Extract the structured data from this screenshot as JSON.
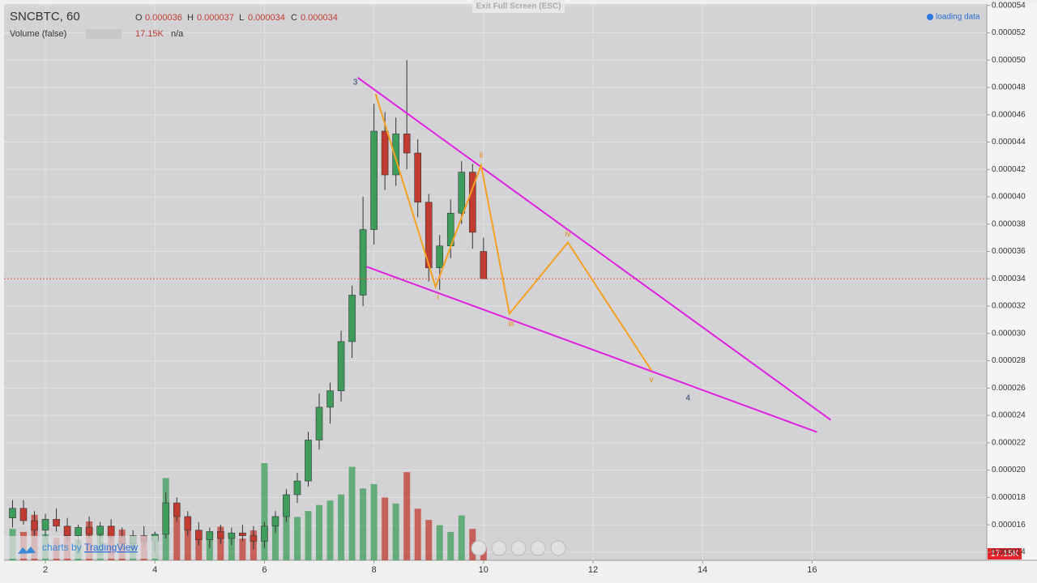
{
  "chart_data": {
    "type": "candlestick",
    "title": "SNCBTC, 60",
    "header": {
      "open_label": "O",
      "open": "0.000036",
      "high_label": "H",
      "high": "0.000037",
      "low_label": "L",
      "low": "0.000034",
      "close_label": "C",
      "close": "0.000034"
    },
    "volume_title": "Volume (false)",
    "volume_value": "17.15K",
    "volume_extra": "n/a",
    "exit_text": "Exit Full Screen (ESC)",
    "status_text": "loading data",
    "branding_prefix": "charts by",
    "branding_name": "TradingView",
    "x": [
      1.4,
      1.6,
      1.8,
      2.0,
      2.2,
      2.4,
      2.6,
      2.8,
      3.0,
      3.2,
      3.4,
      3.6,
      3.8,
      4.0,
      4.2,
      4.4,
      4.6,
      4.8,
      5.0,
      5.2,
      5.4,
      5.6,
      5.8,
      6.0,
      6.2,
      6.4,
      6.6,
      6.8,
      7.0,
      7.2,
      7.4,
      7.6,
      7.8,
      8.0,
      8.2,
      8.4,
      8.6,
      8.8,
      9.0,
      9.2,
      9.4,
      9.6,
      9.8,
      10.0
    ],
    "open": [
      1.65e-05,
      1.72e-05,
      1.63e-05,
      1.56e-05,
      1.64e-05,
      1.59e-05,
      1.52e-05,
      1.58e-05,
      1.53e-05,
      1.59e-05,
      1.51e-05,
      1.46e-05,
      1.52e-05,
      1.48e-05,
      1.53e-05,
      1.76e-05,
      1.66e-05,
      1.56e-05,
      1.49e-05,
      1.55e-05,
      1.5e-05,
      1.54e-05,
      1.52e-05,
      1.48e-05,
      1.59e-05,
      1.66e-05,
      1.82e-05,
      1.92e-05,
      2.22e-05,
      2.46e-05,
      2.58e-05,
      2.94e-05,
      3.28e-05,
      3.76e-05,
      4.48e-05,
      4.16e-05,
      4.46e-05,
      4.32e-05,
      3.96e-05,
      3.48e-05,
      3.64e-05,
      3.88e-05,
      4.18e-05,
      3.6e-05
    ],
    "high": [
      1.78e-05,
      1.78e-05,
      1.7e-05,
      1.68e-05,
      1.72e-05,
      1.65e-05,
      1.6e-05,
      1.66e-05,
      1.62e-05,
      1.64e-05,
      1.58e-05,
      1.56e-05,
      1.59e-05,
      1.55e-05,
      1.84e-05,
      1.8e-05,
      1.7e-05,
      1.62e-05,
      1.58e-05,
      1.6e-05,
      1.58e-05,
      1.6e-05,
      1.59e-05,
      1.62e-05,
      1.7e-05,
      1.86e-05,
      1.98e-05,
      2.28e-05,
      2.56e-05,
      2.64e-05,
      3.02e-05,
      3.35e-05,
      4e-05,
      4.68e-05,
      4.62e-05,
      4.58e-05,
      5e-05,
      4.42e-05,
      4.02e-05,
      3.72e-05,
      3.98e-05,
      4.26e-05,
      4.24e-05,
      3.7e-05
    ],
    "low": [
      1.58e-05,
      1.6e-05,
      1.52e-05,
      1.5e-05,
      1.55e-05,
      1.48e-05,
      1.46e-05,
      1.5e-05,
      1.45e-05,
      1.48e-05,
      1.42e-05,
      1.4e-05,
      1.44e-05,
      1.4e-05,
      1.5e-05,
      1.62e-05,
      1.52e-05,
      1.45e-05,
      1.43e-05,
      1.46e-05,
      1.45e-05,
      1.48e-05,
      1.42e-05,
      1.43e-05,
      1.54e-05,
      1.62e-05,
      1.76e-05,
      1.88e-05,
      2.15e-05,
      2.34e-05,
      2.5e-05,
      2.82e-05,
      3.2e-05,
      3.65e-05,
      4.05e-05,
      4.08e-05,
      4.2e-05,
      3.85e-05,
      3.38e-05,
      3.32e-05,
      3.55e-05,
      3.8e-05,
      3.62e-05,
      3.4e-05
    ],
    "close": [
      1.72e-05,
      1.63e-05,
      1.56e-05,
      1.64e-05,
      1.59e-05,
      1.52e-05,
      1.58e-05,
      1.53e-05,
      1.59e-05,
      1.51e-05,
      1.46e-05,
      1.52e-05,
      1.48e-05,
      1.53e-05,
      1.76e-05,
      1.66e-05,
      1.56e-05,
      1.49e-05,
      1.55e-05,
      1.5e-05,
      1.54e-05,
      1.52e-05,
      1.48e-05,
      1.59e-05,
      1.66e-05,
      1.82e-05,
      1.92e-05,
      2.22e-05,
      2.46e-05,
      2.58e-05,
      2.94e-05,
      3.28e-05,
      3.76e-05,
      4.48e-05,
      4.16e-05,
      4.46e-05,
      4.32e-05,
      3.96e-05,
      3.48e-05,
      3.64e-05,
      3.88e-05,
      4.18e-05,
      3.74e-05,
      3.4e-05
    ],
    "volume": [
      42000,
      38000,
      61000,
      35000,
      30000,
      44000,
      28000,
      52000,
      36000,
      33000,
      41000,
      27000,
      30000,
      25000,
      110000,
      64000,
      48000,
      39000,
      31000,
      45000,
      36000,
      29000,
      40000,
      130000,
      52000,
      70000,
      58000,
      66000,
      74000,
      80000,
      88000,
      125000,
      96000,
      102000,
      84000,
      76000,
      118000,
      69000,
      54000,
      47000,
      38000,
      60000,
      42000,
      17150
    ],
    "up_color": "#3f9d5b",
    "down_color": "#c23b30",
    "xlim": [
      1.245,
      19.19
    ],
    "xticks": [
      2,
      4,
      6,
      8,
      10,
      12,
      14,
      16
    ],
    "ylim": [
      1.34e-05,
      5.41e-05
    ],
    "yticks": [
      {
        "value": 1.4e-05,
        "label": "0.000014"
      },
      {
        "value": 1.6e-05,
        "label": "0.000016"
      },
      {
        "value": 1.8e-05,
        "label": "0.000018"
      },
      {
        "value": 2e-05,
        "label": "0.000020"
      },
      {
        "value": 2.2e-05,
        "label": "0.000022"
      },
      {
        "value": 2.4e-05,
        "label": "0.000024"
      },
      {
        "value": 2.6e-05,
        "label": "0.000026"
      },
      {
        "value": 2.8e-05,
        "label": "0.000028"
      },
      {
        "value": 3e-05,
        "label": "0.000030"
      },
      {
        "value": 3.2e-05,
        "label": "0.000032"
      },
      {
        "value": 3.4e-05,
        "label": "0.000034"
      },
      {
        "value": 3.6e-05,
        "label": "0.000036"
      },
      {
        "value": 3.8e-05,
        "label": "0.000038"
      },
      {
        "value": 4e-05,
        "label": "0.000040"
      },
      {
        "value": 4.2e-05,
        "label": "0.000042"
      },
      {
        "value": 4.4e-05,
        "label": "0.000044"
      },
      {
        "value": 4.6e-05,
        "label": "0.000046"
      },
      {
        "value": 4.8e-05,
        "label": "0.000048"
      },
      {
        "value": 5e-05,
        "label": "0.000050"
      },
      {
        "value": 5.2e-05,
        "label": "0.000052"
      },
      {
        "value": 5.4e-05,
        "label": "0.000054"
      }
    ],
    "grid": true,
    "drawings": [
      {
        "color": "#e020e0",
        "x": [
          7.704,
          16.34
        ],
        "y": [
          4.871e-05,
          2.367e-05
        ]
      },
      {
        "color": "#e020e0",
        "x": [
          7.867,
          16.09
        ],
        "y": [
          3.488e-05,
          2.278e-05
        ]
      },
      {
        "color": "#f5a020",
        "x": [
          8.03,
          9.126,
          9.956,
          10.474,
          11.541,
          13.067
        ],
        "y": [
          4.752e-05,
          3.34e-05,
          4.23e-05,
          3.144e-05,
          3.666e-05,
          2.729e-05
        ]
      }
    ],
    "annotations": [
      {
        "text": "3",
        "x": 7.659,
        "y": 4.836e-05,
        "color": "#2a3a6a"
      },
      {
        "text": "i",
        "x": 9.17,
        "y": 3.263e-05,
        "color": "#e08a10"
      },
      {
        "text": "ii",
        "x": 9.956,
        "y": 4.301e-05,
        "color": "#e08a10"
      },
      {
        "text": "iii",
        "x": 10.504,
        "y": 3.067e-05,
        "color": "#e08a10"
      },
      {
        "text": "iv",
        "x": 11.541,
        "y": 3.726e-05,
        "color": "#e08a10"
      },
      {
        "text": "v",
        "x": 13.067,
        "y": 2.658e-05,
        "color": "#e08a10"
      },
      {
        "text": "4",
        "x": 13.733,
        "y": 2.527e-05,
        "color": "#2a3a6a"
      }
    ]
  }
}
